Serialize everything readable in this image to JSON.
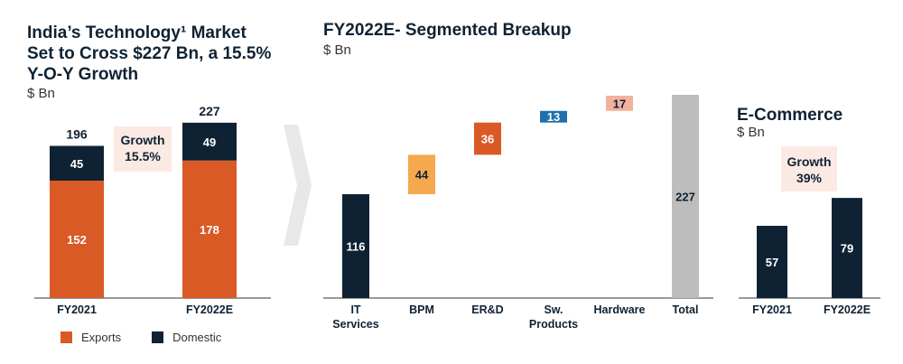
{
  "left_panel": {
    "title_line1": "India’s Technology¹ Market",
    "title_line2": "Set to Cross $227 Bn, a 15.5%",
    "title_line3": "Y-O-Y Growth",
    "unit": "$ Bn",
    "growth_label": "Growth",
    "growth_value": "15.5%"
  },
  "middle_panel": {
    "title": "FY2022E- Segmented Breakup",
    "unit": "$ Bn"
  },
  "right_panel": {
    "title": "E-Commerce",
    "unit": "$ Bn",
    "growth_label": "Growth",
    "growth_value": "39%"
  },
  "colors": {
    "exports": "#d95a25",
    "domestic": "#0f2233",
    "bpm": "#f5a84c",
    "sw_products": "#1f6fad",
    "hardware": "#f2b29c",
    "total": "#bdbdbd",
    "growth_bg": "#fbeae3",
    "chevron": "#e6e8ea"
  },
  "chart_data": [
    {
      "type": "bar",
      "stacked": true,
      "categories": [
        "FY2021",
        "FY2022E"
      ],
      "series": [
        {
          "name": "Exports",
          "values": [
            152,
            178
          ]
        },
        {
          "name": "Domestic",
          "values": [
            45,
            49
          ]
        }
      ],
      "totals": [
        "196",
        "227"
      ],
      "legend": "bottom-left"
    },
    {
      "type": "bar",
      "waterfall": true,
      "categories": [
        "IT Services",
        "BPM",
        "ER&D",
        "Sw. Products",
        "Hardware",
        "Total"
      ],
      "category_lines": [
        [
          "IT",
          "Services"
        ],
        [
          "BPM"
        ],
        [
          "ER&D"
        ],
        [
          "Sw.",
          "Products"
        ],
        [
          "Hardware"
        ],
        [
          "Total"
        ]
      ],
      "values": [
        116,
        44,
        36,
        13,
        17,
        227
      ]
    },
    {
      "type": "bar",
      "categories": [
        "FY2021",
        "FY2022E"
      ],
      "values": [
        57,
        79
      ]
    }
  ]
}
